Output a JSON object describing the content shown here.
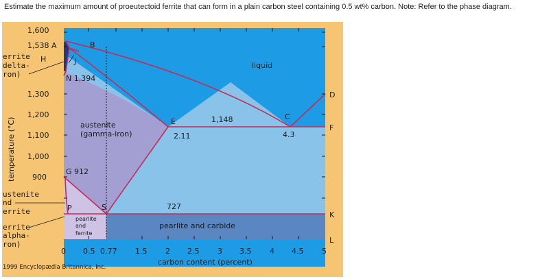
{
  "question": "Estimate the maximum amount of proeutectoid ferrite  that can form in a plain carbon steel containing 0.5 wt% carbon. Note: Refer to the phase diagram.",
  "diagram": {
    "colors": {
      "frame": "#f6c573",
      "liquid": "#1d9be4",
      "austenite": "#a39fd3",
      "gamma_cementite": "#89c3ea",
      "pearlite_carbide": "#5a86c1",
      "alpha_gamma": "#cec3e5",
      "delta": "#1f3a8a",
      "boundary": "#c22d5a"
    },
    "y_ticks": [
      "1,600",
      "1,538 A",
      "1,300",
      "1,200",
      "1,100",
      "1,000",
      "900"
    ],
    "x_ticks": [
      "0",
      "0.5",
      "0.77",
      "1.5",
      "2",
      "2.5",
      "3",
      "3.5",
      "4",
      "4.5",
      "5"
    ],
    "y_axis_label": "temperature (°C)",
    "x_axis_label": "carbon content (percent)",
    "left_labels": {
      "delta": [
        "errite",
        "delta-",
        "ron)"
      ],
      "austenite_ferrite": [
        "ustenite",
        "nd",
        "errite"
      ],
      "alpha": [
        "errite",
        "alpha-",
        "ron)"
      ]
    },
    "points": {
      "A": "A",
      "B": "B",
      "H": "H",
      "J": "J",
      "N": "N 1,394",
      "E": "E",
      "E_val": "2.11",
      "C": "C",
      "C_val": "4.3",
      "G": "G 912",
      "P": "P",
      "S": "S",
      "D": "D",
      "F": "F",
      "K": "K",
      "L": "L"
    },
    "regions": {
      "liquid": "liquid",
      "austenite_1": "austenite",
      "austenite_2": "(gamma-iron)",
      "eutectic_temp": "1,148",
      "eutectoid_temp": "727",
      "pearlite_carbide": "pearlite and carbide",
      "pearlite_ferrite": [
        "pearlite",
        "and",
        "ferrite"
      ]
    },
    "credit": "1999 Encyclopædia Britannica, Inc."
  }
}
